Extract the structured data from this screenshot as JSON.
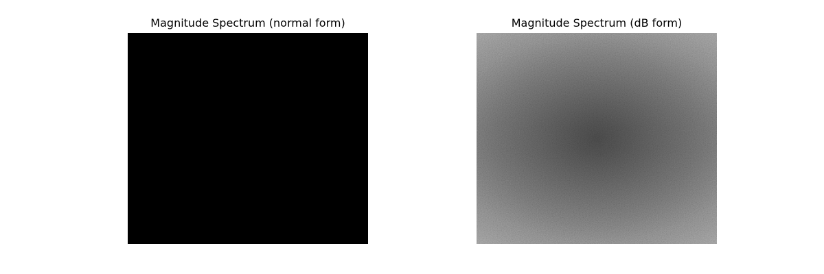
{
  "chart_data": [
    {
      "type": "heatmap",
      "title": "Magnitude Spectrum (normal form)",
      "colormap": "gray",
      "axes": "off",
      "appearance": "uniform black",
      "fill_color": "#000000"
    },
    {
      "type": "heatmap",
      "title": "Magnitude Spectrum (dB form)",
      "colormap": "gray",
      "axes": "off",
      "appearance": "gray noise; brighter toward the corners and edges, darker band through the center",
      "center_color": "#454545",
      "edge_color": "#6a6a6a",
      "corner_color": "#8e8e8e"
    }
  ]
}
